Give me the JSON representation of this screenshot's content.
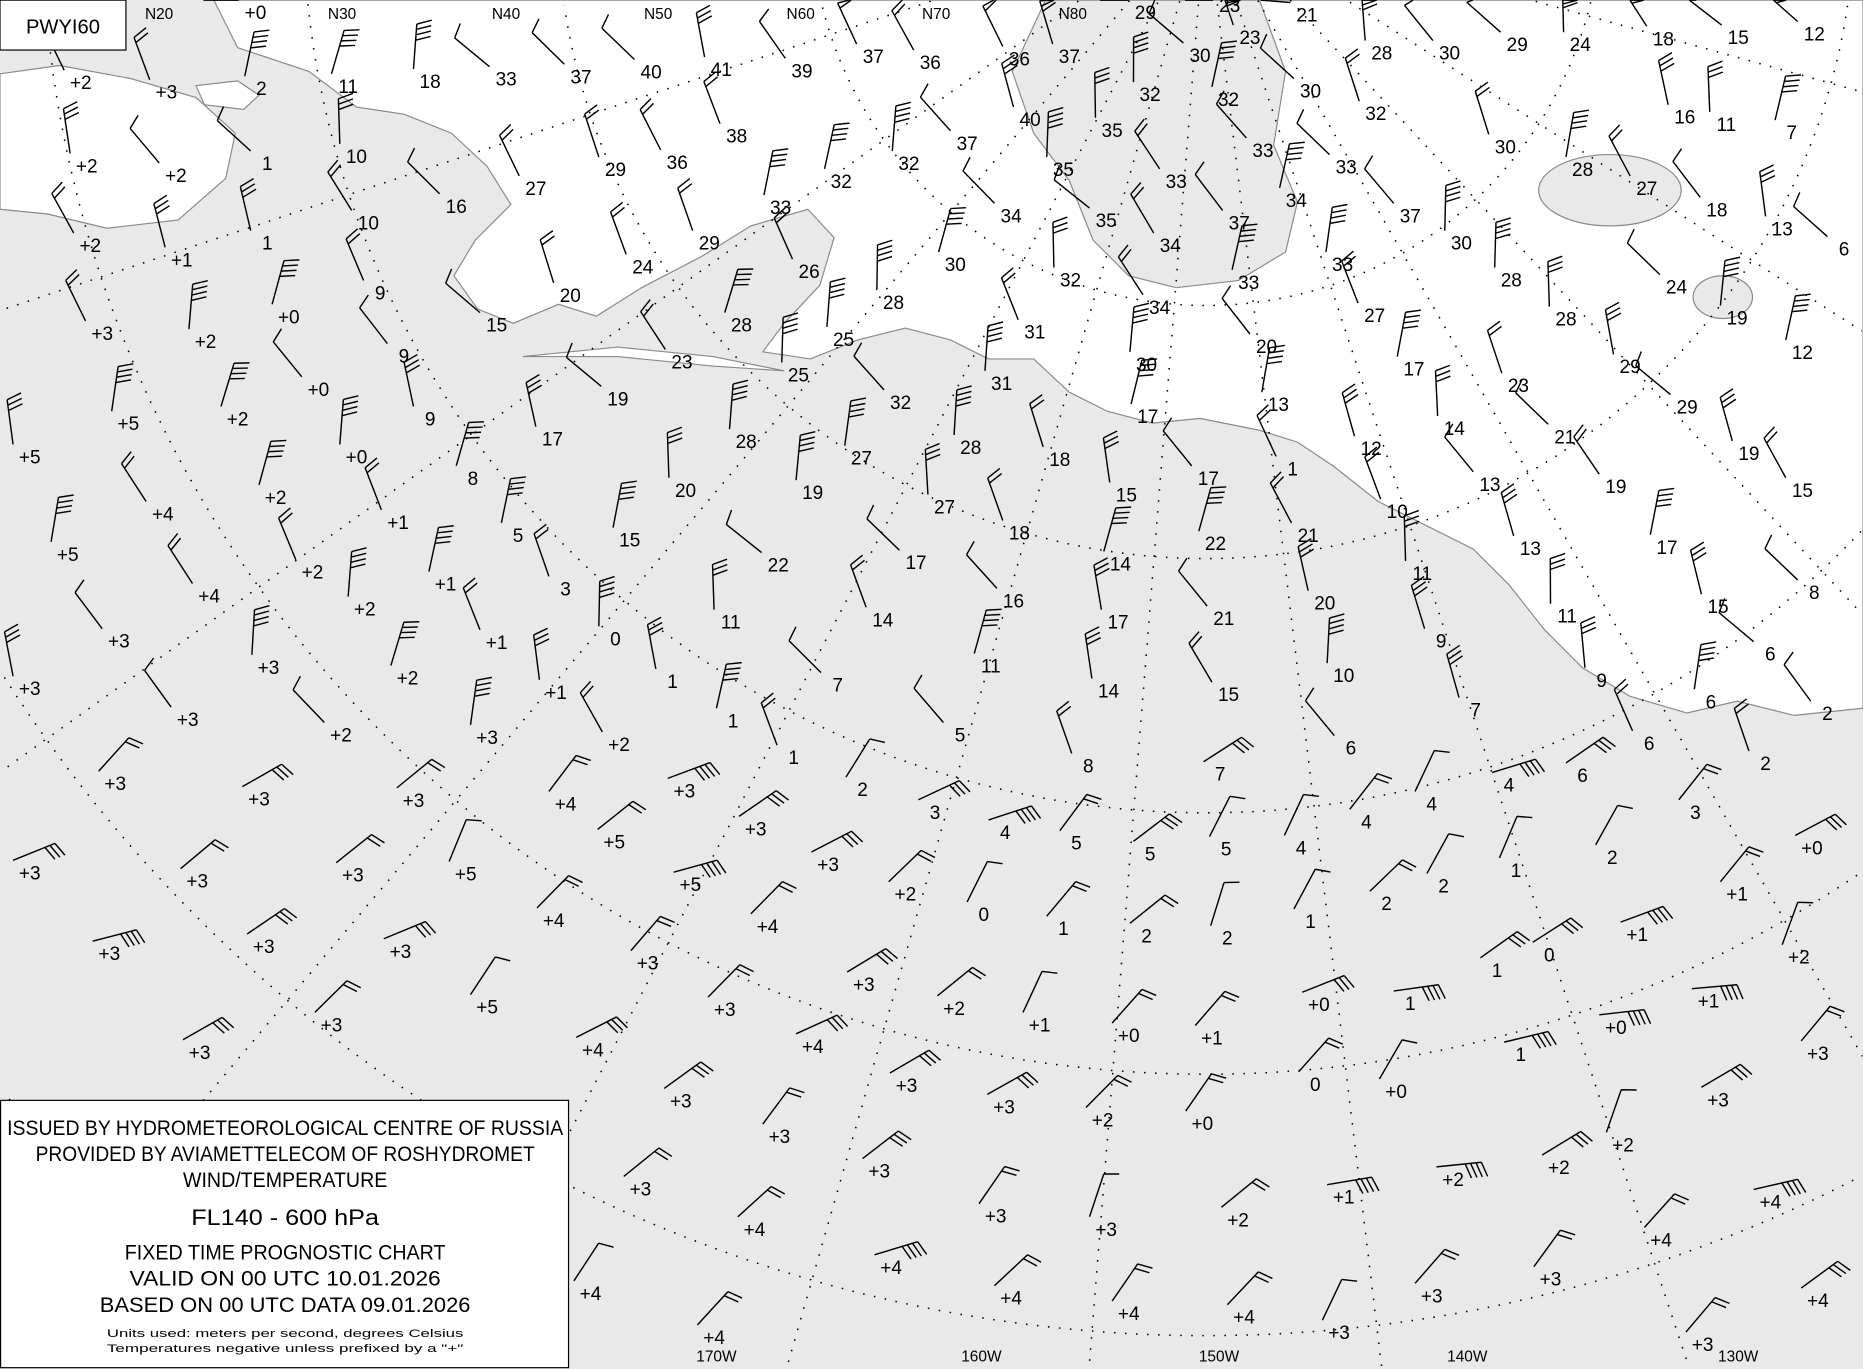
{
  "chart_id": "PWYI60",
  "legend": {
    "line1": "ISSUED BY HYDROMETEOROLOGICAL CENTRE OF RUSSIA",
    "line2": "PROVIDED BY AVIAMETTELECOM OF ROSHYDROMET",
    "line3": "WIND/TEMPERATURE",
    "level": "FL140 - 600 hPa",
    "line5": "FIXED TIME PROGNOSTIC CHART",
    "valid": "VALID ON 00 UTC 10.01.2026",
    "based": "BASED ON 00 UTC DATA 09.01.2026",
    "units": "Units used: meters per second, degrees Celsius",
    "note": "Temperatures negative unless prefixed by a \"+\""
  },
  "colors": {
    "ocean": "#e9e9e9",
    "land": "#ffffff",
    "coast": "#8a8a8a",
    "ink": "#000000"
  },
  "top_labels": [
    "N20",
    "N30",
    "N40",
    "N50",
    "N60",
    "N70",
    "N80"
  ],
  "bottom_labels": [
    "170W",
    "160W",
    "150W",
    "140W",
    "130W"
  ],
  "chart_data": {
    "type": "map",
    "map_kind": "wind/temperature upper-air chart, polar stereographic",
    "temperatures": [
      "+0",
      "2",
      "1",
      "1",
      "+2",
      "+3",
      "+2",
      "+2",
      "+2",
      "+1",
      "+0",
      "+2",
      "+0",
      "+2",
      "+0",
      "+1",
      "+1",
      "+1",
      "+1",
      "+2",
      "+3",
      "+3",
      "+3",
      "+2",
      "0",
      "1",
      "2",
      "2",
      "1",
      "2",
      "11",
      "10",
      "10",
      "9",
      "9",
      "9",
      "8",
      "5",
      "3",
      "0",
      "1",
      "1",
      "1",
      "2",
      "3",
      "4",
      "5",
      "5",
      "5",
      "4",
      "4",
      "4",
      "4",
      "6",
      "6",
      "6",
      "2",
      "2",
      "3",
      "2",
      "2",
      "1",
      "18",
      "33",
      "37",
      "40",
      "41",
      "39",
      "37",
      "36",
      "36",
      "37",
      "29",
      "30",
      "23",
      "23",
      "21",
      "28",
      "30",
      "29",
      "24",
      "18",
      "15",
      "12",
      "16",
      "27",
      "29",
      "36",
      "38",
      "32",
      "32",
      "37",
      "40",
      "35",
      "35",
      "32",
      "32",
      "33",
      "30",
      "32",
      "33",
      "34",
      "33",
      "37",
      "30",
      "28",
      "27",
      "16",
      "11",
      "7",
      "18",
      "13",
      "6",
      "15",
      "20",
      "24",
      "29",
      "33",
      "26",
      "28",
      "23",
      "28",
      "30",
      "34",
      "35",
      "32",
      "34",
      "37",
      "33",
      "34",
      "31",
      "25",
      "25",
      "19",
      "17",
      "28",
      "32",
      "31",
      "30",
      "20",
      "27",
      "28",
      "30",
      "33",
      "24",
      "28",
      "19",
      "12",
      "29",
      "23",
      "17",
      "29",
      "21",
      "14",
      "12",
      "13",
      "17",
      "19",
      "19",
      "15",
      "17",
      "15",
      "8",
      "13",
      "13",
      "10",
      "11",
      "11",
      "9",
      "9",
      "6",
      "20",
      "27",
      "28",
      "18",
      "15",
      "17",
      "1",
      "22",
      "21",
      "14",
      "18",
      "27",
      "19",
      "22",
      "17",
      "15",
      "11",
      "14",
      "16",
      "17",
      "21",
      "20",
      "7",
      "11",
      "14",
      "15",
      "10",
      "5",
      "8",
      "7",
      "6",
      "7",
      "+3",
      "+5",
      "+5",
      "+4",
      "+5",
      "+2",
      "+2",
      "+4",
      "+3",
      "+2",
      "+3",
      "+3",
      "+3",
      "+2",
      "+2",
      "+3",
      "+3",
      "+3",
      "+3",
      "+4",
      "+3",
      "+3",
      "+3",
      "+5",
      "+5",
      "+5",
      "+4",
      "+3",
      "+3",
      "+3",
      "+4",
      "+3",
      "+3",
      "+5",
      "+3",
      "+3",
      "+3",
      "+4",
      "+4",
      "+2",
      "+1",
      "+0",
      "+1",
      "+0",
      "1",
      "1",
      "0",
      "+1",
      "+1",
      "+0",
      "+2",
      "+1",
      "+0",
      "1",
      "0",
      "+0",
      "+3",
      "+3",
      "+2",
      "+2",
      "+2",
      "+1",
      "+2",
      "+3",
      "+3",
      "+3",
      "+3",
      "+2",
      "+0",
      "+3",
      "+3",
      "+3",
      "+3",
      "+4",
      "+4",
      "+4",
      "+4",
      "+4",
      "+3",
      "+3",
      "+3",
      "+4",
      "+4",
      "+4",
      "+3",
      "+4",
      "+4"
    ]
  }
}
